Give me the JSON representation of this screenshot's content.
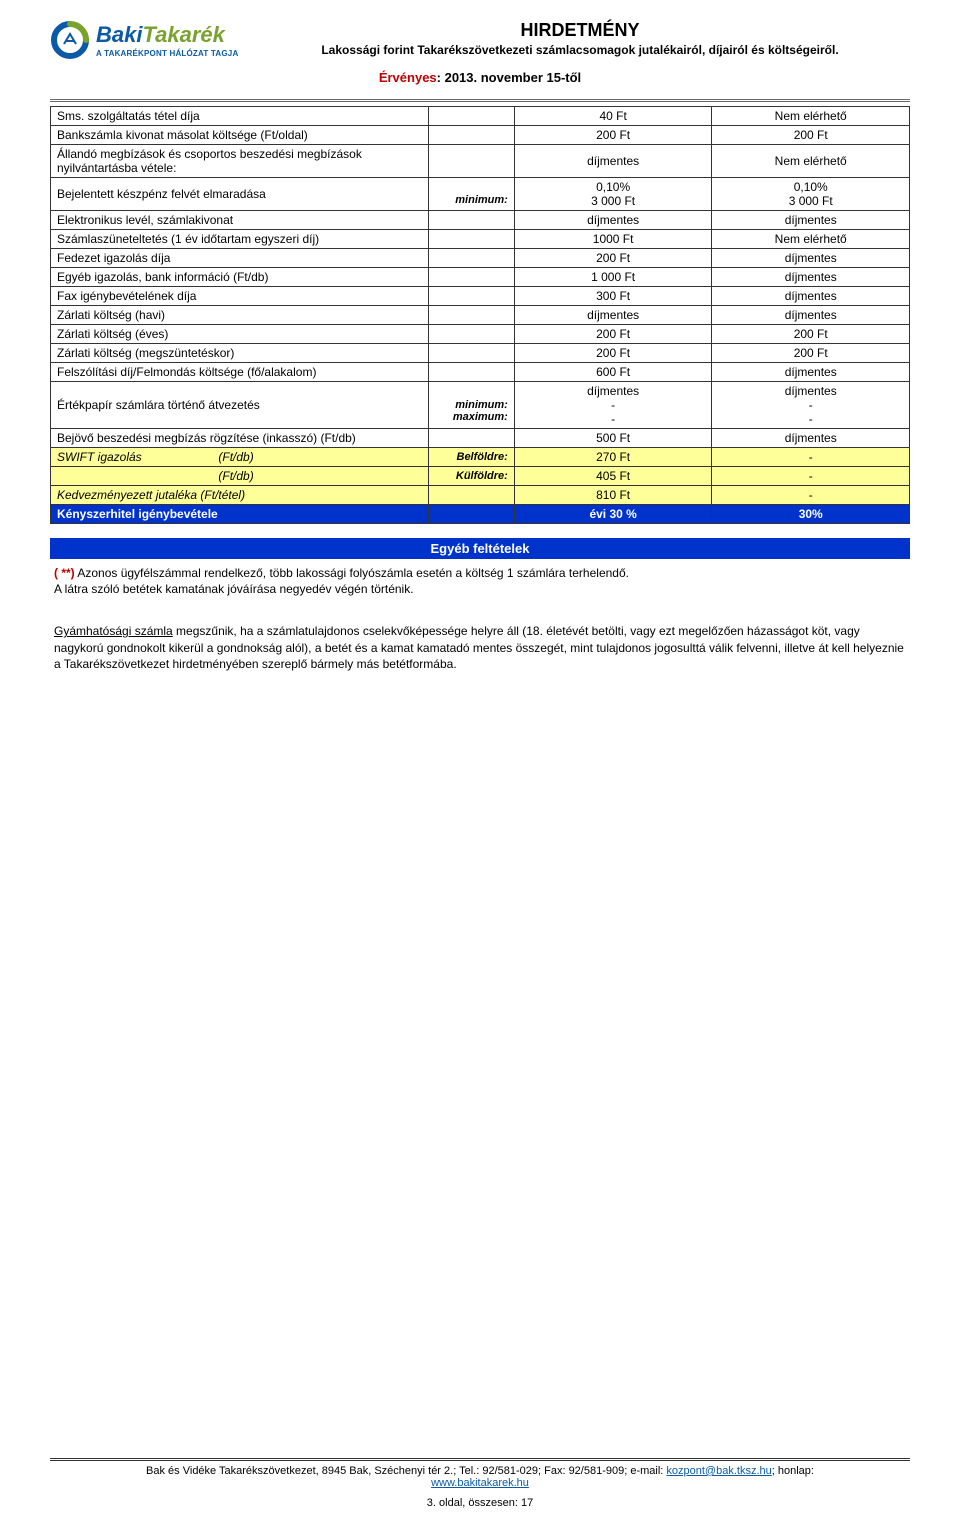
{
  "logo": {
    "name1": "Baki",
    "name2": "Takarék",
    "tagline": "A TAKARÉKPONT HÁLÓZAT TAGJA",
    "colors": {
      "blue": "#0a5aa8",
      "green": "#7aa22e"
    }
  },
  "header": {
    "title": "HIRDETMÉNY",
    "subtitle": "Lakossági forint Takarékszövetkezeti számlacsomagok jutalékairól, díjairól és költségeiről."
  },
  "effective": {
    "label": "Érvényes",
    "value": ": 2013. november 15-től"
  },
  "rows": [
    {
      "label": "Sms. szolgáltatás tétel díja",
      "mid": "",
      "v1": "40 Ft",
      "v2": "Nem elérhető"
    },
    {
      "label": "Bankszámla kivonat másolat költsége (Ft/oldal)",
      "mid": "",
      "v1": "200 Ft",
      "v2": "200 Ft"
    },
    {
      "label": "Állandó megbízások és csoportos beszedési megbízások nyilvántartásba vétele:",
      "mid": "",
      "v1": "díjmentes",
      "v2": "Nem elérhető"
    },
    {
      "label": "Bejelentett készpénz felvét elmaradása",
      "mid": "minimum:",
      "v1": "0,10%\n3 000 Ft",
      "v2": "0,10%\n3 000 Ft",
      "twoLine": true
    },
    {
      "label": "Elektronikus levél, számlakivonat",
      "mid": "",
      "v1": "díjmentes",
      "v2": "díjmentes"
    },
    {
      "label": "Számlaszüneteltetés (1 év időtartam egyszeri díj)",
      "mid": "",
      "v1": "1000 Ft",
      "v2": "Nem elérhető"
    },
    {
      "label": "Fedezet igazolás díja",
      "mid": "",
      "v1": "200 Ft",
      "v2": "díjmentes"
    },
    {
      "label": "Egyéb igazolás, bank információ (Ft/db)",
      "mid": "",
      "v1": "1 000 Ft",
      "v2": "díjmentes"
    },
    {
      "label": "Fax igénybevételének díja",
      "mid": "",
      "v1": "300 Ft",
      "v2": "díjmentes"
    },
    {
      "label": "Zárlati költség (havi)",
      "mid": "",
      "v1": "díjmentes",
      "v2": "díjmentes"
    },
    {
      "label": "Zárlati költség (éves)",
      "mid": "",
      "v1": "200 Ft",
      "v2": "200 Ft"
    },
    {
      "label": "Zárlati költség (megszüntetéskor)",
      "mid": "",
      "v1": "200 Ft",
      "v2": "200 Ft"
    },
    {
      "label": "Felszólítási díj/Felmondás költsége (fő/alakalom)",
      "mid": "",
      "v1": "600 Ft",
      "v2": "díjmentes"
    },
    {
      "label": "Értékpapír számlára történő átvezetés",
      "mid": "minimum:\nmaximum:",
      "v1": "díjmentes\n-\n-",
      "v2": "díjmentes\n-\n-",
      "threeLine": true
    },
    {
      "label": "Bejövő beszedési megbízás rögzítése (inkasszó) (Ft/db)",
      "mid": "",
      "v1": "500 Ft",
      "v2": "díjmentes"
    }
  ],
  "swift": {
    "label": "SWIFT igazolás",
    "unit": "(Ft/db)",
    "r1": {
      "mid": "Belföldre:",
      "v1": "270 Ft",
      "v2": "-"
    },
    "r2": {
      "mid": "Külföldre:",
      "v1": "405 Ft",
      "v2": "-"
    }
  },
  "jutalek": {
    "label": "Kedvezményezett jutaléka (Ft/tétel)",
    "v1": "810 Ft",
    "v2": "-"
  },
  "forced": {
    "label": "Kényszerhitel igénybevétele",
    "v1": "évi 30 %",
    "v2": "30%"
  },
  "conditions": {
    "title": "Egyéb feltételek",
    "marker": "( **)",
    "line1": " Azonos ügyfélszámmal rendelkező, több lakossági folyószámla esetén a költség 1 számlára terhelendő.",
    "line2": "A látra szóló betétek kamatának jóváírása negyedév végén történik."
  },
  "note": {
    "lead": "Gyámhatósági számla",
    "text": " megszűnik, ha a számlatulajdonos cselekvőképessége helyre áll (18. életévét betölti, vagy ezt megelőzően házasságot köt, vagy nagykorú gondnokolt kikerül a gondnokság alól), a betét és a kamat kamatadó mentes összegét, mint tulajdonos jogosulttá válik felvenni, illetve át kell helyeznie a Takarékszövetkezet hirdetményében szereplő bármely más betétformába."
  },
  "footer": {
    "org": "Bak és Vidéke Takarékszövetkezet, 8945 Bak, Széchenyi tér 2.; Tel.: 92/581-029; Fax: 92/581-909; e-mail: ",
    "email": "kozpont@bak.tksz.hu",
    "sep": "; honlap:",
    "site": "www.bakitakarek.hu",
    "page": "3. oldal, összesen: 17"
  }
}
